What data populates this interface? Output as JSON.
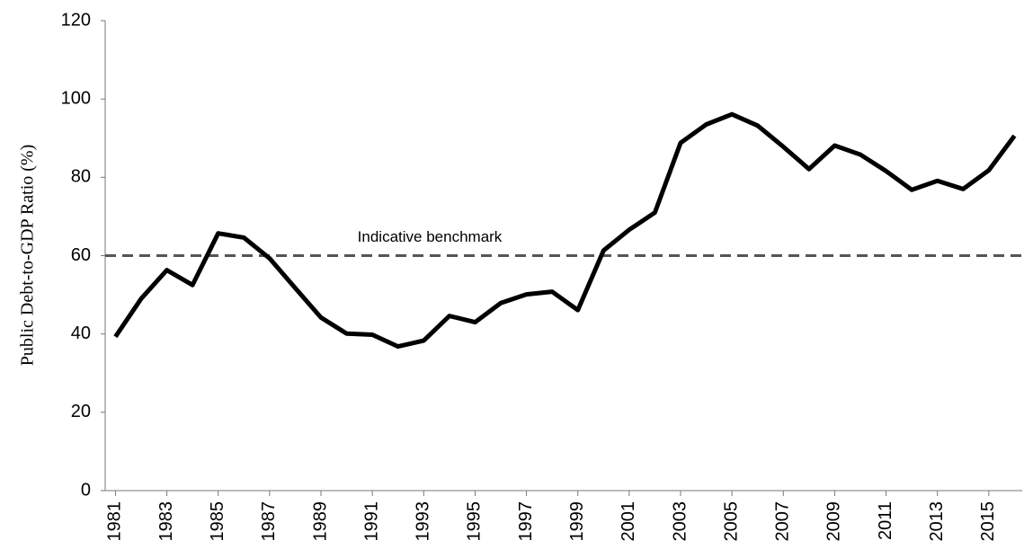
{
  "chart_data": {
    "type": "line",
    "y_label": "Public Debt-to-GDP Ratio (%)",
    "x": [
      1981,
      1982,
      1983,
      1984,
      1985,
      1986,
      1987,
      1988,
      1989,
      1990,
      1991,
      1992,
      1993,
      1994,
      1995,
      1996,
      1997,
      1998,
      1999,
      2000,
      2001,
      2002,
      2003,
      2004,
      2005,
      2006,
      2007,
      2008,
      2009,
      2010,
      2011,
      2012,
      2013,
      2014,
      2015,
      2016
    ],
    "series": [
      {
        "color": "#000000",
        "values": [
          39.3,
          49,
          56.3,
          52.5,
          65.7,
          64.6,
          59.3,
          51.7,
          44.2,
          40.1,
          39.8,
          36.8,
          38.3,
          44.6,
          43,
          47.9,
          50.1,
          50.8,
          46.1,
          61.3,
          66.6,
          71,
          88.8,
          93.5,
          96.1,
          93.2,
          87.8,
          82.1,
          88.1,
          85.8,
          81.6,
          76.8,
          79.1,
          77,
          81.8,
          90.6
        ]
      }
    ],
    "benchmark": {
      "label": "Indicative benchmark",
      "value": 60,
      "color": "#555555"
    },
    "xlim": [
      1980.6,
      2016.3
    ],
    "xticks": [
      1981,
      1983,
      1985,
      1987,
      1989,
      1991,
      1993,
      1995,
      1997,
      1999,
      2001,
      2003,
      2005,
      2007,
      2009,
      2011,
      2013,
      2015
    ],
    "ylim": [
      0,
      120
    ],
    "yticks": [
      0,
      20,
      40,
      60,
      80,
      100,
      120
    ],
    "grid": false
  }
}
